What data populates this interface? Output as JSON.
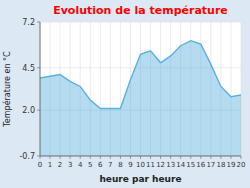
{
  "chart_data": {
    "type": "area",
    "title": "Evolution de la température",
    "x_label": "heure par heure",
    "y_label": "Température en °C",
    "x": [
      0,
      1,
      2,
      3,
      4,
      5,
      6,
      7,
      8,
      9,
      10,
      11,
      12,
      13,
      14,
      15,
      16,
      17,
      18,
      19,
      20
    ],
    "values": [
      3.9,
      4.0,
      4.1,
      3.7,
      3.4,
      2.6,
      2.1,
      2.1,
      2.1,
      3.8,
      5.3,
      5.5,
      4.8,
      5.2,
      5.8,
      6.1,
      5.9,
      4.7,
      3.4,
      2.8,
      2.9
    ],
    "color": "#5ab0e0",
    "xlim": [
      0,
      20
    ],
    "xticks": [
      0,
      1,
      2,
      3,
      4,
      5,
      6,
      7,
      8,
      9,
      10,
      11,
      12,
      13,
      14,
      15,
      16,
      17,
      18,
      19,
      20
    ],
    "ylim": [
      -0.7,
      7.2
    ],
    "yticks": [
      -0.7,
      {
        "value": 2.0,
        "label": "2.0"
      },
      4.5,
      7.2
    ],
    "grid": true
  }
}
